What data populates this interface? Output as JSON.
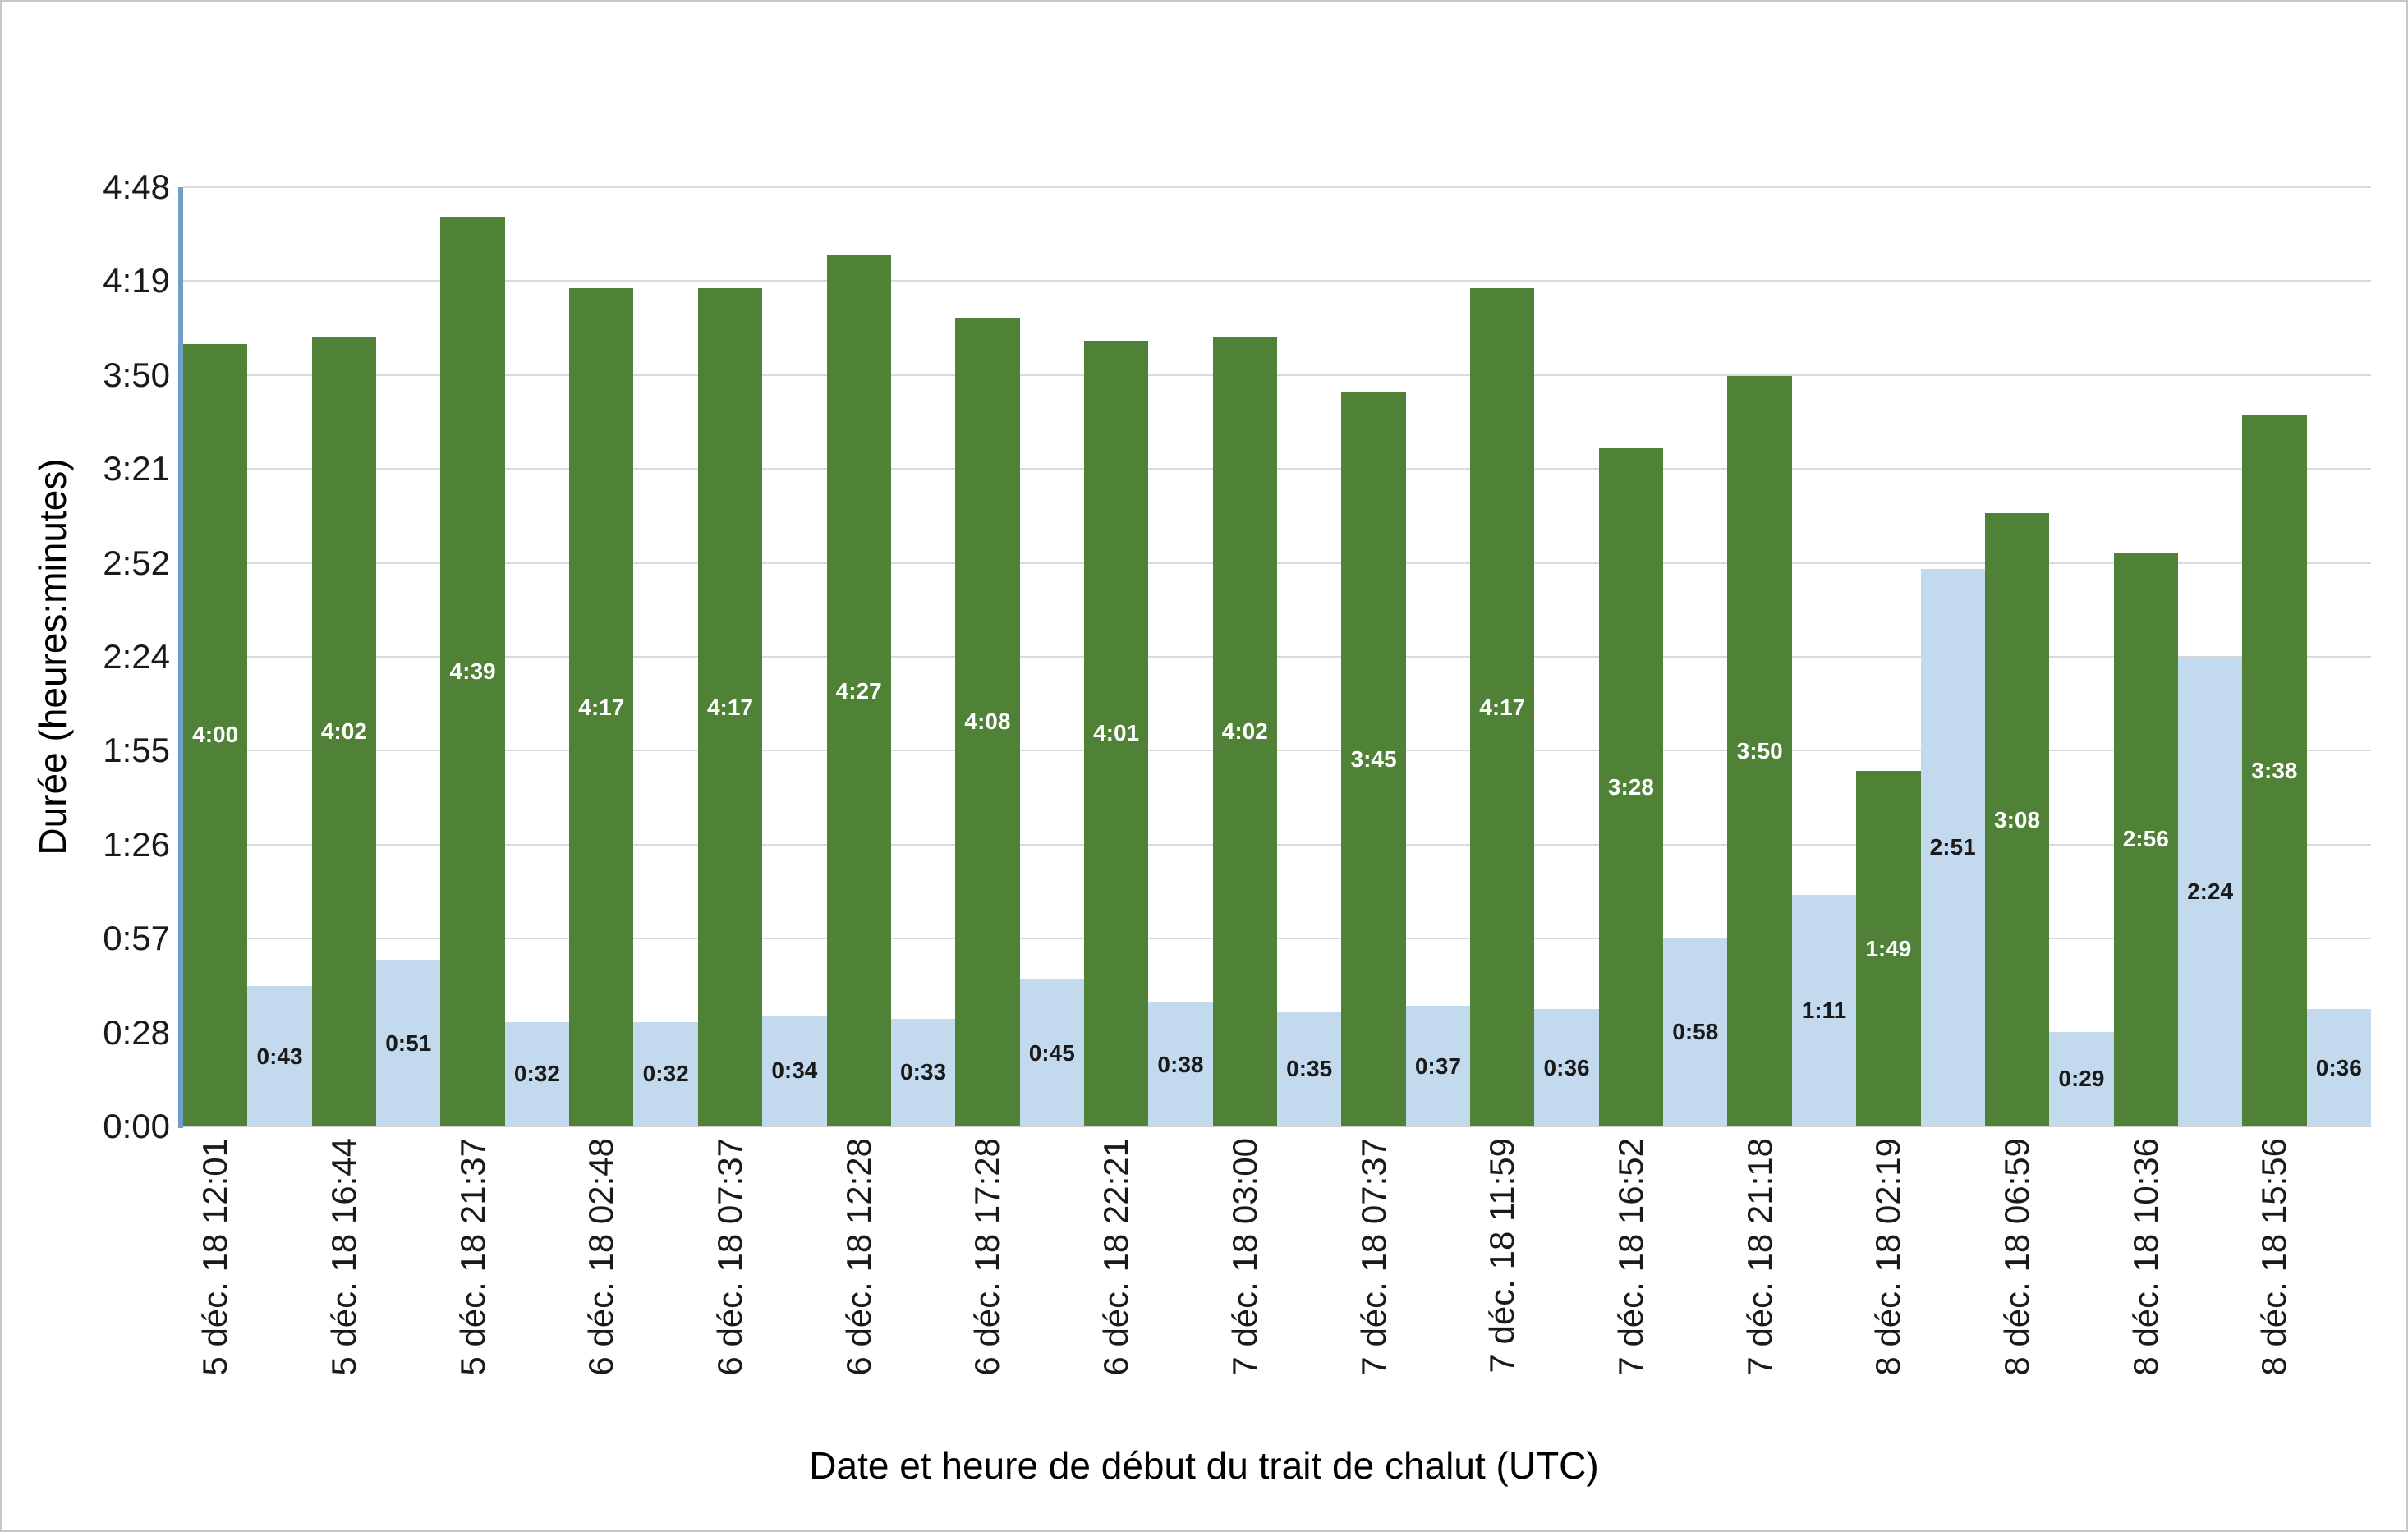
{
  "chart_data": {
    "type": "bar",
    "title": "",
    "xlabel": "Date et heure de début du trait de chalut (UTC)",
    "ylabel": "Durée (heures:minutes)",
    "y_ticks": [
      "4:48",
      "4:19",
      "3:50",
      "3:21",
      "2:52",
      "2:24",
      "1:55",
      "1:26",
      "0:57",
      "0:28",
      "0:00"
    ],
    "y_max_minutes": 288,
    "ylim": [
      "0:00",
      "4:48"
    ],
    "grid": true,
    "legend_position": "none",
    "categories": [
      "5 déc. 18 12:01",
      "5 déc. 18 16:44",
      "5 déc. 18 21:37",
      "6 déc. 18 02:48",
      "6 déc. 18 07:37",
      "6 déc. 18 12:28",
      "6 déc. 18 17:28",
      "6 déc. 18 22:21",
      "7 déc. 18 03:00",
      "7 déc. 18 07:37",
      "7 déc. 18 11:59",
      "7 déc. 18 16:52",
      "7 déc. 18 21:18",
      "8 déc. 18 02:19",
      "8 déc. 18 06:59",
      "8 déc. 18 10:36",
      "8 déc. 18 15:56"
    ],
    "series": [
      {
        "key": "green",
        "color": "#4f8136",
        "label_color": "#ffffff",
        "labels": [
          "4:00",
          "4:02",
          "4:39",
          "4:17",
          "4:17",
          "4:27",
          "4:08",
          "4:01",
          "4:02",
          "3:45",
          "4:17",
          "3:28",
          "3:50",
          "1:49",
          "3:08",
          "2:56",
          "3:38"
        ],
        "minutes": [
          240,
          242,
          279,
          257,
          257,
          267,
          248,
          241,
          242,
          225,
          257,
          208,
          230,
          109,
          188,
          176,
          218
        ]
      },
      {
        "key": "blue",
        "color": "#c2d9ee",
        "label_color": "#1a1a1a",
        "labels": [
          "0:43",
          "0:51",
          "0:32",
          "0:32",
          "0:34",
          "0:33",
          "0:45",
          "0:38",
          "0:35",
          "0:37",
          "0:36",
          "0:58",
          "1:11",
          "2:51",
          "0:29",
          "2:24",
          "0:36"
        ],
        "minutes": [
          43,
          51,
          32,
          32,
          34,
          33,
          45,
          38,
          35,
          37,
          36,
          58,
          71,
          171,
          29,
          144,
          36
        ]
      }
    ]
  },
  "colors": {
    "background": "#ffffff",
    "border": "#c6c6c6",
    "gridline": "#dadada",
    "x_axis_line": "#cfcfcf",
    "y_axis_line": "#6f9fc9",
    "tick_text": "#1a1a1a",
    "green_bar": "#4f8136",
    "blue_bar": "#c2d9ee"
  }
}
